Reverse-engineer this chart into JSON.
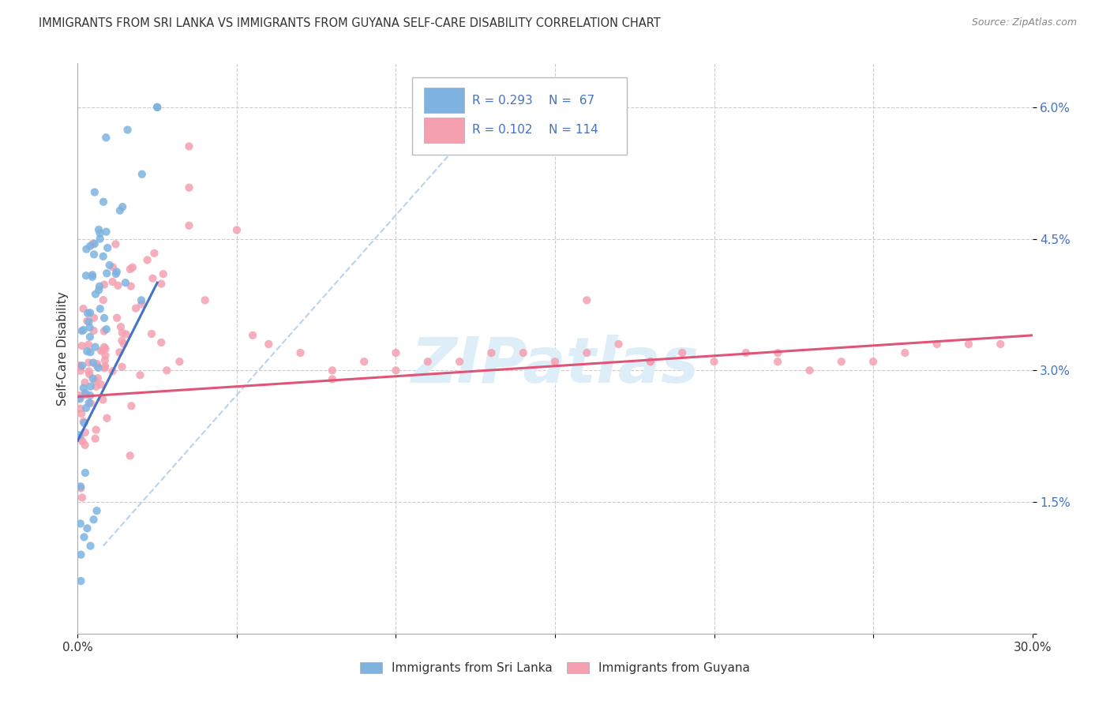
{
  "title": "IMMIGRANTS FROM SRI LANKA VS IMMIGRANTS FROM GUYANA SELF-CARE DISABILITY CORRELATION CHART",
  "source": "Source: ZipAtlas.com",
  "ylabel": "Self-Care Disability",
  "x_min": 0.0,
  "x_max": 0.3,
  "y_min": 0.0,
  "y_max": 0.065,
  "x_ticks": [
    0.0,
    0.05,
    0.1,
    0.15,
    0.2,
    0.25,
    0.3
  ],
  "x_tick_labels": [
    "0.0%",
    "",
    "",
    "",
    "",
    "",
    "30.0%"
  ],
  "y_ticks": [
    0.0,
    0.015,
    0.03,
    0.045,
    0.06
  ],
  "y_tick_labels": [
    "",
    "1.5%",
    "3.0%",
    "4.5%",
    "6.0%"
  ],
  "sri_lanka_color": "#7eb3e0",
  "guyana_color": "#f4a0b0",
  "sri_lanka_line_color": "#4472c4",
  "guyana_line_color": "#e05577",
  "diagonal_line_color": "#a8c8e8",
  "watermark_color": "#ddeef8",
  "legend_R_sri_lanka": "R = 0.293",
  "legend_N_sri_lanka": "N =  67",
  "legend_R_guyana": "R = 0.102",
  "legend_N_guyana": "N = 114",
  "text_color_blue": "#4472c4",
  "text_color_dark": "#333333",
  "source_color": "#888888"
}
